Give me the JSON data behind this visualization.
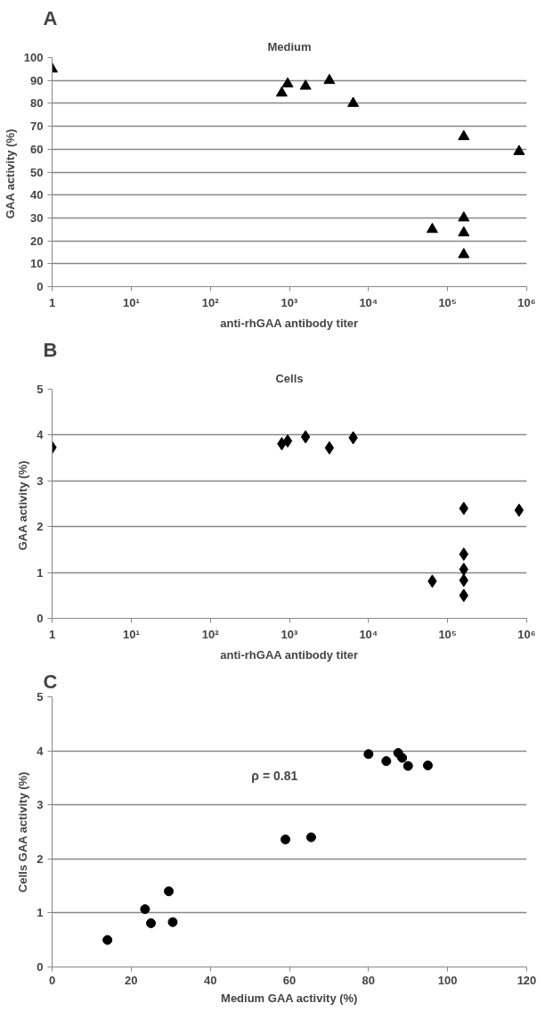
{
  "chart_data": [
    {
      "type": "scatter",
      "title": "Medium",
      "xlabel": "anti-rhGAA antibody titer",
      "ylabel": "GAA  activity (%)",
      "annotations": [
        "A"
      ],
      "log": "x",
      "grid": "y",
      "marker": "triangle",
      "series": [
        {
          "color": "#000000",
          "x": [
            1,
            800,
            950,
            1600,
            3200,
            6400,
            64000,
            160000,
            160000,
            160000,
            160000,
            800000
          ],
          "values": [
            95,
            84.5,
            88.5,
            87.5,
            90,
            80,
            25,
            65.5,
            30,
            23.5,
            14,
            59
          ]
        }
      ],
      "xlim": [
        1,
        1000000
      ],
      "xticks": [
        1,
        {
          "value": 10,
          "label": "10¹"
        },
        {
          "value": 100,
          "label": "10²"
        },
        {
          "value": 1000,
          "label": "10³"
        },
        {
          "value": 10000,
          "label": "10⁴"
        },
        {
          "value": 100000,
          "label": "10⁵"
        },
        {
          "value": 1000000,
          "label": "10⁶"
        }
      ],
      "ylim": [
        0,
        100
      ],
      "yticks": [
        0,
        10,
        20,
        30,
        40,
        50,
        60,
        70,
        80,
        90,
        100
      ]
    },
    {
      "type": "scatter",
      "title": "Cells",
      "xlabel": "anti-rhGAA antibody titer",
      "ylabel": "GAA  activity (%)",
      "annotations": [
        "B"
      ],
      "log": "x",
      "grid": "y",
      "marker": "diamond",
      "series": [
        {
          "color": "#000000",
          "x": [
            1,
            800,
            950,
            1600,
            3200,
            6400,
            64000,
            160000,
            160000,
            160000,
            160000,
            160000,
            800000
          ],
          "values": [
            3.73,
            3.81,
            3.87,
            3.96,
            3.72,
            3.94,
            0.81,
            2.4,
            1.4,
            1.07,
            0.83,
            0.5,
            2.36
          ]
        }
      ],
      "xlim": [
        1,
        1000000
      ],
      "xticks": [
        1,
        {
          "value": 10,
          "label": "10¹"
        },
        {
          "value": 100,
          "label": "10²"
        },
        {
          "value": 1000,
          "label": "10³"
        },
        {
          "value": 10000,
          "label": "10⁴"
        },
        {
          "value": 100000,
          "label": "10⁵"
        },
        {
          "value": 1000000,
          "label": "10⁶"
        }
      ],
      "ylim": [
        0,
        5
      ],
      "yticks": [
        0,
        1,
        2,
        3,
        4,
        5
      ]
    },
    {
      "type": "scatter",
      "xlabel": "Medium GAA activity (%)",
      "ylabel": "Cells GAA activity (%)",
      "annotations": [
        "C",
        "ρ =  0.81"
      ],
      "grid": "y",
      "marker": "circle",
      "series": [
        {
          "color": "#000000",
          "x": [
            95,
            84.5,
            88.5,
            87.5,
            90,
            80,
            25,
            65.5,
            30.5,
            23.5,
            14,
            59,
            29.5
          ],
          "values": [
            3.73,
            3.81,
            3.87,
            3.96,
            3.72,
            3.94,
            0.81,
            2.4,
            0.83,
            1.07,
            0.5,
            2.36,
            1.4
          ]
        }
      ],
      "xlim": [
        0,
        120
      ],
      "xticks": [
        0,
        20,
        40,
        60,
        80,
        100,
        120
      ],
      "ylim": [
        0,
        5
      ],
      "yticks": [
        0,
        1,
        2,
        3,
        4,
        5
      ]
    }
  ]
}
